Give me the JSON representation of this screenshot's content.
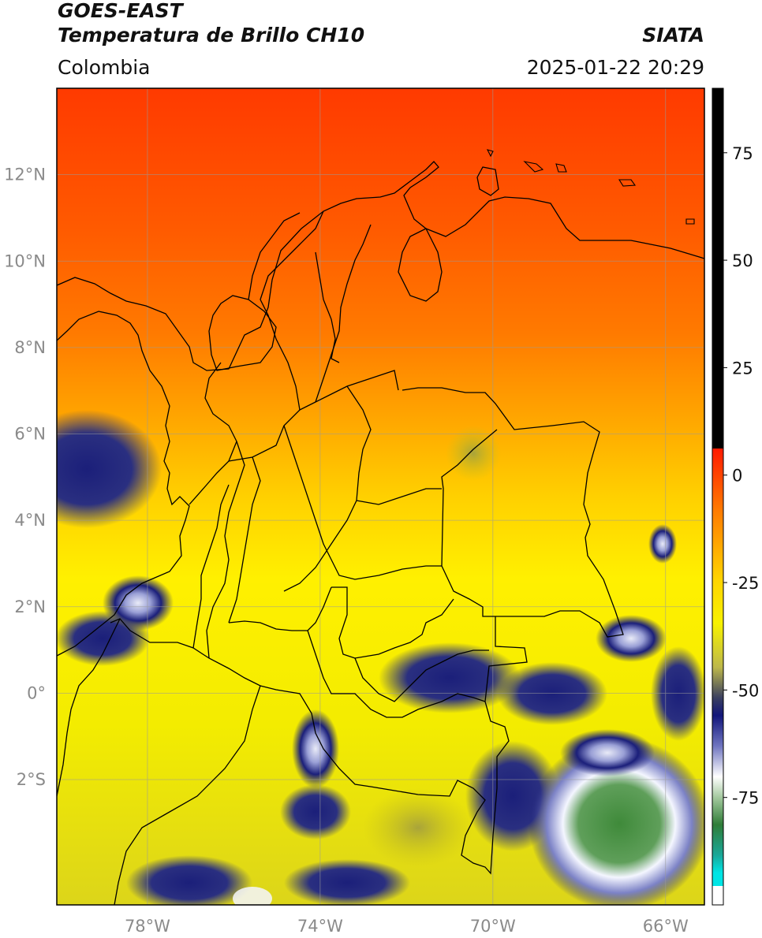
{
  "header": {
    "satellite": "GOES-EAST",
    "product": "Temperatura de Brillo CH10",
    "brand": "SIATA",
    "region": "Colombia",
    "timestamp": "2025-01-22 20:29"
  },
  "map": {
    "lat_range": [
      -4.9,
      14.0
    ],
    "lon_range": [
      -80.1,
      -65.1
    ],
    "lat_ticks": [
      {
        "value": 12,
        "label": "12°N"
      },
      {
        "value": 10,
        "label": "10°N"
      },
      {
        "value": 8,
        "label": "8°N"
      },
      {
        "value": 6,
        "label": "6°N"
      },
      {
        "value": 4,
        "label": "4°N"
      },
      {
        "value": 2,
        "label": "2°N"
      },
      {
        "value": 0,
        "label": "0°"
      },
      {
        "value": -2,
        "label": "2°S"
      }
    ],
    "lon_ticks": [
      {
        "value": -78,
        "label": "78°W"
      },
      {
        "value": -74,
        "label": "74°W"
      },
      {
        "value": -70,
        "label": "70°W"
      },
      {
        "value": -66,
        "label": "66°W"
      }
    ],
    "colors": {
      "warm": "#ff3a00",
      "orange": "#ff8a00",
      "yellow": "#fff200",
      "olive": "#c9c31a",
      "navy": "#1b1f7a",
      "white": "#f4f6ff",
      "green": "#3f8a3a",
      "border": "#000000",
      "grid": "#9a9a9a"
    }
  },
  "colorbar": {
    "ticks": [
      {
        "value": 75,
        "label": "75"
      },
      {
        "value": 50,
        "label": "50"
      },
      {
        "value": 25,
        "label": "25"
      },
      {
        "value": 0,
        "label": "0"
      },
      {
        "value": -25,
        "label": "-25"
      },
      {
        "value": -50,
        "label": "-50"
      },
      {
        "value": -75,
        "label": "-75"
      }
    ],
    "range": [
      -100,
      90
    ]
  }
}
